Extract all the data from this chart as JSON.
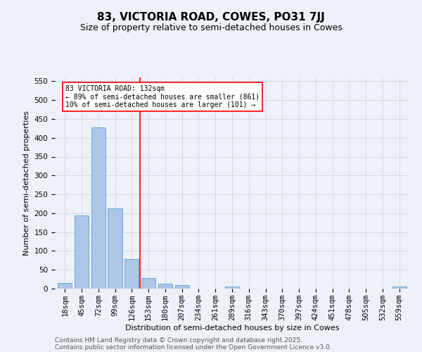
{
  "title": "83, VICTORIA ROAD, COWES, PO31 7JJ",
  "subtitle": "Size of property relative to semi-detached houses in Cowes",
  "xlabel": "Distribution of semi-detached houses by size in Cowes",
  "ylabel": "Number of semi-detached properties",
  "categories": [
    "18sqm",
    "45sqm",
    "72sqm",
    "99sqm",
    "126sqm",
    "153sqm",
    "180sqm",
    "207sqm",
    "234sqm",
    "261sqm",
    "289sqm",
    "316sqm",
    "343sqm",
    "370sqm",
    "397sqm",
    "424sqm",
    "451sqm",
    "478sqm",
    "505sqm",
    "532sqm",
    "559sqm"
  ],
  "values": [
    15,
    195,
    428,
    212,
    78,
    28,
    13,
    10,
    0,
    0,
    5,
    0,
    0,
    0,
    0,
    0,
    0,
    0,
    0,
    0,
    5
  ],
  "bar_color": "#aec6e8",
  "bar_edge_color": "#5a9fd4",
  "vline_x": 4.5,
  "vline_color": "red",
  "annotation_line1": "83 VICTORIA ROAD: 132sqm",
  "annotation_line2": "← 89% of semi-detached houses are smaller (861)",
  "annotation_line3": "10% of semi-detached houses are larger (101) →",
  "annotation_box_color": "white",
  "annotation_box_edge": "red",
  "ylim": [
    0,
    560
  ],
  "yticks": [
    0,
    50,
    100,
    150,
    200,
    250,
    300,
    350,
    400,
    450,
    500,
    550
  ],
  "footer_line1": "Contains HM Land Registry data © Crown copyright and database right 2025.",
  "footer_line2": "Contains public sector information licensed under the Open Government Licence v3.0.",
  "bg_color": "#eef2f8",
  "grid_color": "#c8d4e8",
  "title_fontsize": 11,
  "subtitle_fontsize": 9,
  "axis_label_fontsize": 8,
  "tick_fontsize": 7.5,
  "annotation_fontsize": 7,
  "footer_fontsize": 6.5
}
